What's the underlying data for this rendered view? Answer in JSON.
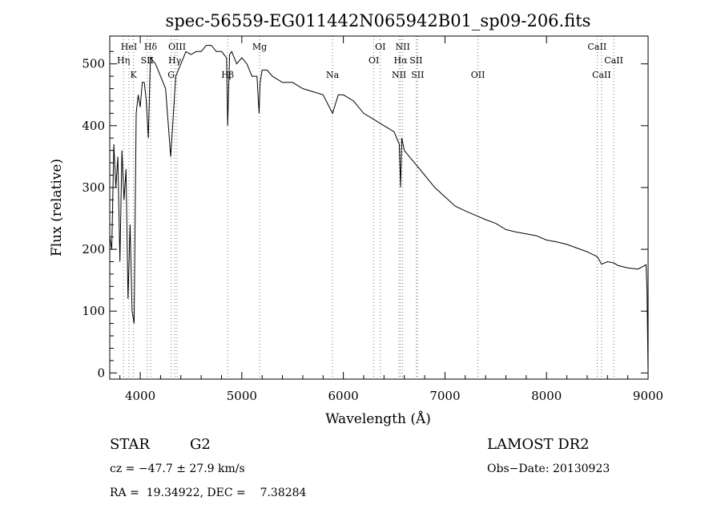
{
  "chart_data": {
    "type": "line",
    "title": "spec-56559-EG011442N065942B01_sp09-206.fits",
    "xlabel": "Wavelength (Å)",
    "ylabel": "Flux (relative)",
    "xlim": [
      3700,
      9000
    ],
    "ylim": [
      -10,
      545
    ],
    "xticks": [
      4000,
      5000,
      6000,
      7000,
      8000,
      9000
    ],
    "yticks": [
      0,
      100,
      200,
      300,
      400,
      500
    ],
    "grid": false,
    "series": [
      {
        "x": [
          3700,
          3720,
          3740,
          3760,
          3780,
          3800,
          3820,
          3840,
          3860,
          3880,
          3900,
          3920,
          3940,
          3960,
          3980,
          4000,
          4020,
          4040,
          4060,
          4080,
          4100,
          4150,
          4200,
          4250,
          4300,
          4350,
          4400,
          4450,
          4500,
          4550,
          4600,
          4650,
          4700,
          4750,
          4800,
          4850,
          4861,
          4880,
          4900,
          4950,
          5000,
          5050,
          5100,
          5150,
          5170,
          5180,
          5200,
          5250,
          5300,
          5400,
          5500,
          5600,
          5700,
          5800,
          5893,
          5950,
          6000,
          6100,
          6200,
          6300,
          6400,
          6500,
          6550,
          6563,
          6575,
          6600,
          6650,
          6700,
          6800,
          6900,
          7000,
          7100,
          7200,
          7300,
          7400,
          7500,
          7600,
          7700,
          7800,
          7900,
          8000,
          8100,
          8200,
          8300,
          8400,
          8500,
          8542,
          8600,
          8662,
          8700,
          8800,
          8900,
          8980,
          8990,
          9000
        ],
        "y": [
          220,
          200,
          370,
          300,
          350,
          180,
          360,
          280,
          330,
          120,
          240,
          100,
          80,
          420,
          450,
          430,
          470,
          470,
          440,
          380,
          510,
          500,
          480,
          460,
          350,
          480,
          500,
          520,
          515,
          520,
          520,
          530,
          530,
          520,
          520,
          510,
          400,
          515,
          520,
          500,
          510,
          500,
          480,
          480,
          420,
          470,
          490,
          490,
          480,
          470,
          470,
          460,
          455,
          450,
          420,
          450,
          450,
          440,
          420,
          410,
          400,
          390,
          370,
          300,
          380,
          360,
          350,
          340,
          320,
          300,
          285,
          270,
          262,
          255,
          248,
          242,
          232,
          228,
          225,
          222,
          215,
          212,
          208,
          202,
          196,
          188,
          176,
          180,
          178,
          174,
          170,
          168,
          175,
          130,
          0
        ]
      }
    ],
    "line_markers": [
      {
        "label": "HeI",
        "x": 3889,
        "row": 1
      },
      {
        "label": "Hη",
        "x": 3835,
        "row": 2
      },
      {
        "label": "K",
        "x": 3934,
        "row": 3
      },
      {
        "label": "Hδ",
        "x": 4102,
        "row": 1
      },
      {
        "label": "SII",
        "x": 4069,
        "row": 2
      },
      {
        "label": "OIII",
        "x": 4363,
        "row": 1
      },
      {
        "label": "Hγ",
        "x": 4340,
        "row": 2
      },
      {
        "label": "G",
        "x": 4305,
        "row": 3
      },
      {
        "label": "Hβ",
        "x": 4861,
        "row": 3
      },
      {
        "label": "Mg",
        "x": 5175,
        "row": 1
      },
      {
        "label": "Na",
        "x": 5893,
        "row": 3
      },
      {
        "label": "OI",
        "x": 6364,
        "row": 1
      },
      {
        "label": "OI",
        "x": 6300,
        "row": 2
      },
      {
        "label": "NII",
        "x": 6584,
        "row": 1
      },
      {
        "label": "Hα",
        "x": 6563,
        "row": 2
      },
      {
        "label": "SII",
        "x": 6716,
        "row": 2
      },
      {
        "label": "NII",
        "x": 6548,
        "row": 3
      },
      {
        "label": "SII",
        "x": 6731,
        "row": 3
      },
      {
        "label": "OII",
        "x": 7325,
        "row": 3
      },
      {
        "label": "CaII",
        "x": 8498,
        "row": 1
      },
      {
        "label": "CaII",
        "x": 8662,
        "row": 2
      },
      {
        "label": "CaII",
        "x": 8542,
        "row": 3
      }
    ]
  },
  "info": {
    "object_class": "STAR",
    "subclass": "G2",
    "survey": "LAMOST DR2",
    "cz": "cz = −47.7 ± 27.9 km/s",
    "obs_date": "Obs−Date: 20130923",
    "coords": "RA =  19.34922, DEC =    7.38284"
  }
}
